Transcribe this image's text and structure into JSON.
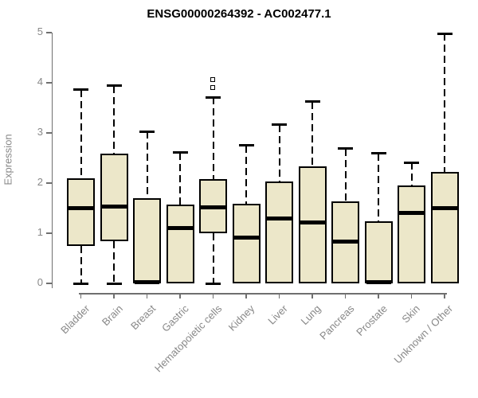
{
  "chart_data": {
    "type": "boxplot",
    "title": "ENSG00000264392 - AC002477.1",
    "ylabel": "Expression",
    "xlabel": "",
    "ylim": [
      0,
      5
    ],
    "y_ticks": [
      0,
      1,
      2,
      3,
      4,
      5
    ],
    "grid": false,
    "legend": false,
    "categories": [
      "Bladder",
      "Brain",
      "Breast",
      "Gastric",
      "Hematopoietic cells",
      "Kidney",
      "Liver",
      "Lung",
      "Pancreas",
      "Prostate",
      "Skin",
      "Unknown / Other"
    ],
    "series": [
      {
        "name": "Bladder",
        "whisker_low": 0,
        "q1": 0.75,
        "median": 1.5,
        "q3": 2.09,
        "whisker_high": 3.86,
        "outliers": []
      },
      {
        "name": "Brain",
        "whisker_low": 0,
        "q1": 0.84,
        "median": 1.53,
        "q3": 2.59,
        "whisker_high": 3.94,
        "outliers": []
      },
      {
        "name": "Breast",
        "whisker_low": 0,
        "q1": 0.0,
        "median": 0.03,
        "q3": 1.7,
        "whisker_high": 3.03,
        "outliers": []
      },
      {
        "name": "Gastric",
        "whisker_low": 0,
        "q1": 0.0,
        "median": 1.1,
        "q3": 1.57,
        "whisker_high": 2.61,
        "outliers": []
      },
      {
        "name": "Hematopoietic cells",
        "whisker_low": 0,
        "q1": 1.0,
        "median": 1.51,
        "q3": 2.08,
        "whisker_high": 3.71,
        "outliers": [
          3.89,
          4.05
        ]
      },
      {
        "name": "Kidney",
        "whisker_low": 0,
        "q1": 0.0,
        "median": 0.92,
        "q3": 1.59,
        "whisker_high": 2.75,
        "outliers": []
      },
      {
        "name": "Liver",
        "whisker_low": 0,
        "q1": 0.0,
        "median": 1.3,
        "q3": 2.03,
        "whisker_high": 3.16,
        "outliers": []
      },
      {
        "name": "Lung",
        "whisker_low": 0,
        "q1": 0.0,
        "median": 1.22,
        "q3": 2.34,
        "whisker_high": 3.62,
        "outliers": []
      },
      {
        "name": "Pancreas",
        "whisker_low": 0,
        "q1": 0.0,
        "median": 0.83,
        "q3": 1.64,
        "whisker_high": 2.69,
        "outliers": []
      },
      {
        "name": "Prostate",
        "whisker_low": 0,
        "q1": 0.0,
        "median": 0.03,
        "q3": 1.24,
        "whisker_high": 2.59,
        "outliers": []
      },
      {
        "name": "Skin",
        "whisker_low": 0,
        "q1": 0.0,
        "median": 1.41,
        "q3": 1.95,
        "whisker_high": 2.41,
        "outliers": []
      },
      {
        "name": "Unknown / Other",
        "whisker_low": 0,
        "q1": 0.0,
        "median": 1.5,
        "q3": 2.22,
        "whisker_high": 4.98,
        "outliers": []
      }
    ],
    "colors": {
      "box_fill": "#ece7c9",
      "box_border": "#000000",
      "median": "#000000",
      "whisker": "#000000",
      "axis_line": "#6f6f6f",
      "axis_text": "#888888",
      "title": "#000000",
      "background": "#ffffff"
    }
  }
}
